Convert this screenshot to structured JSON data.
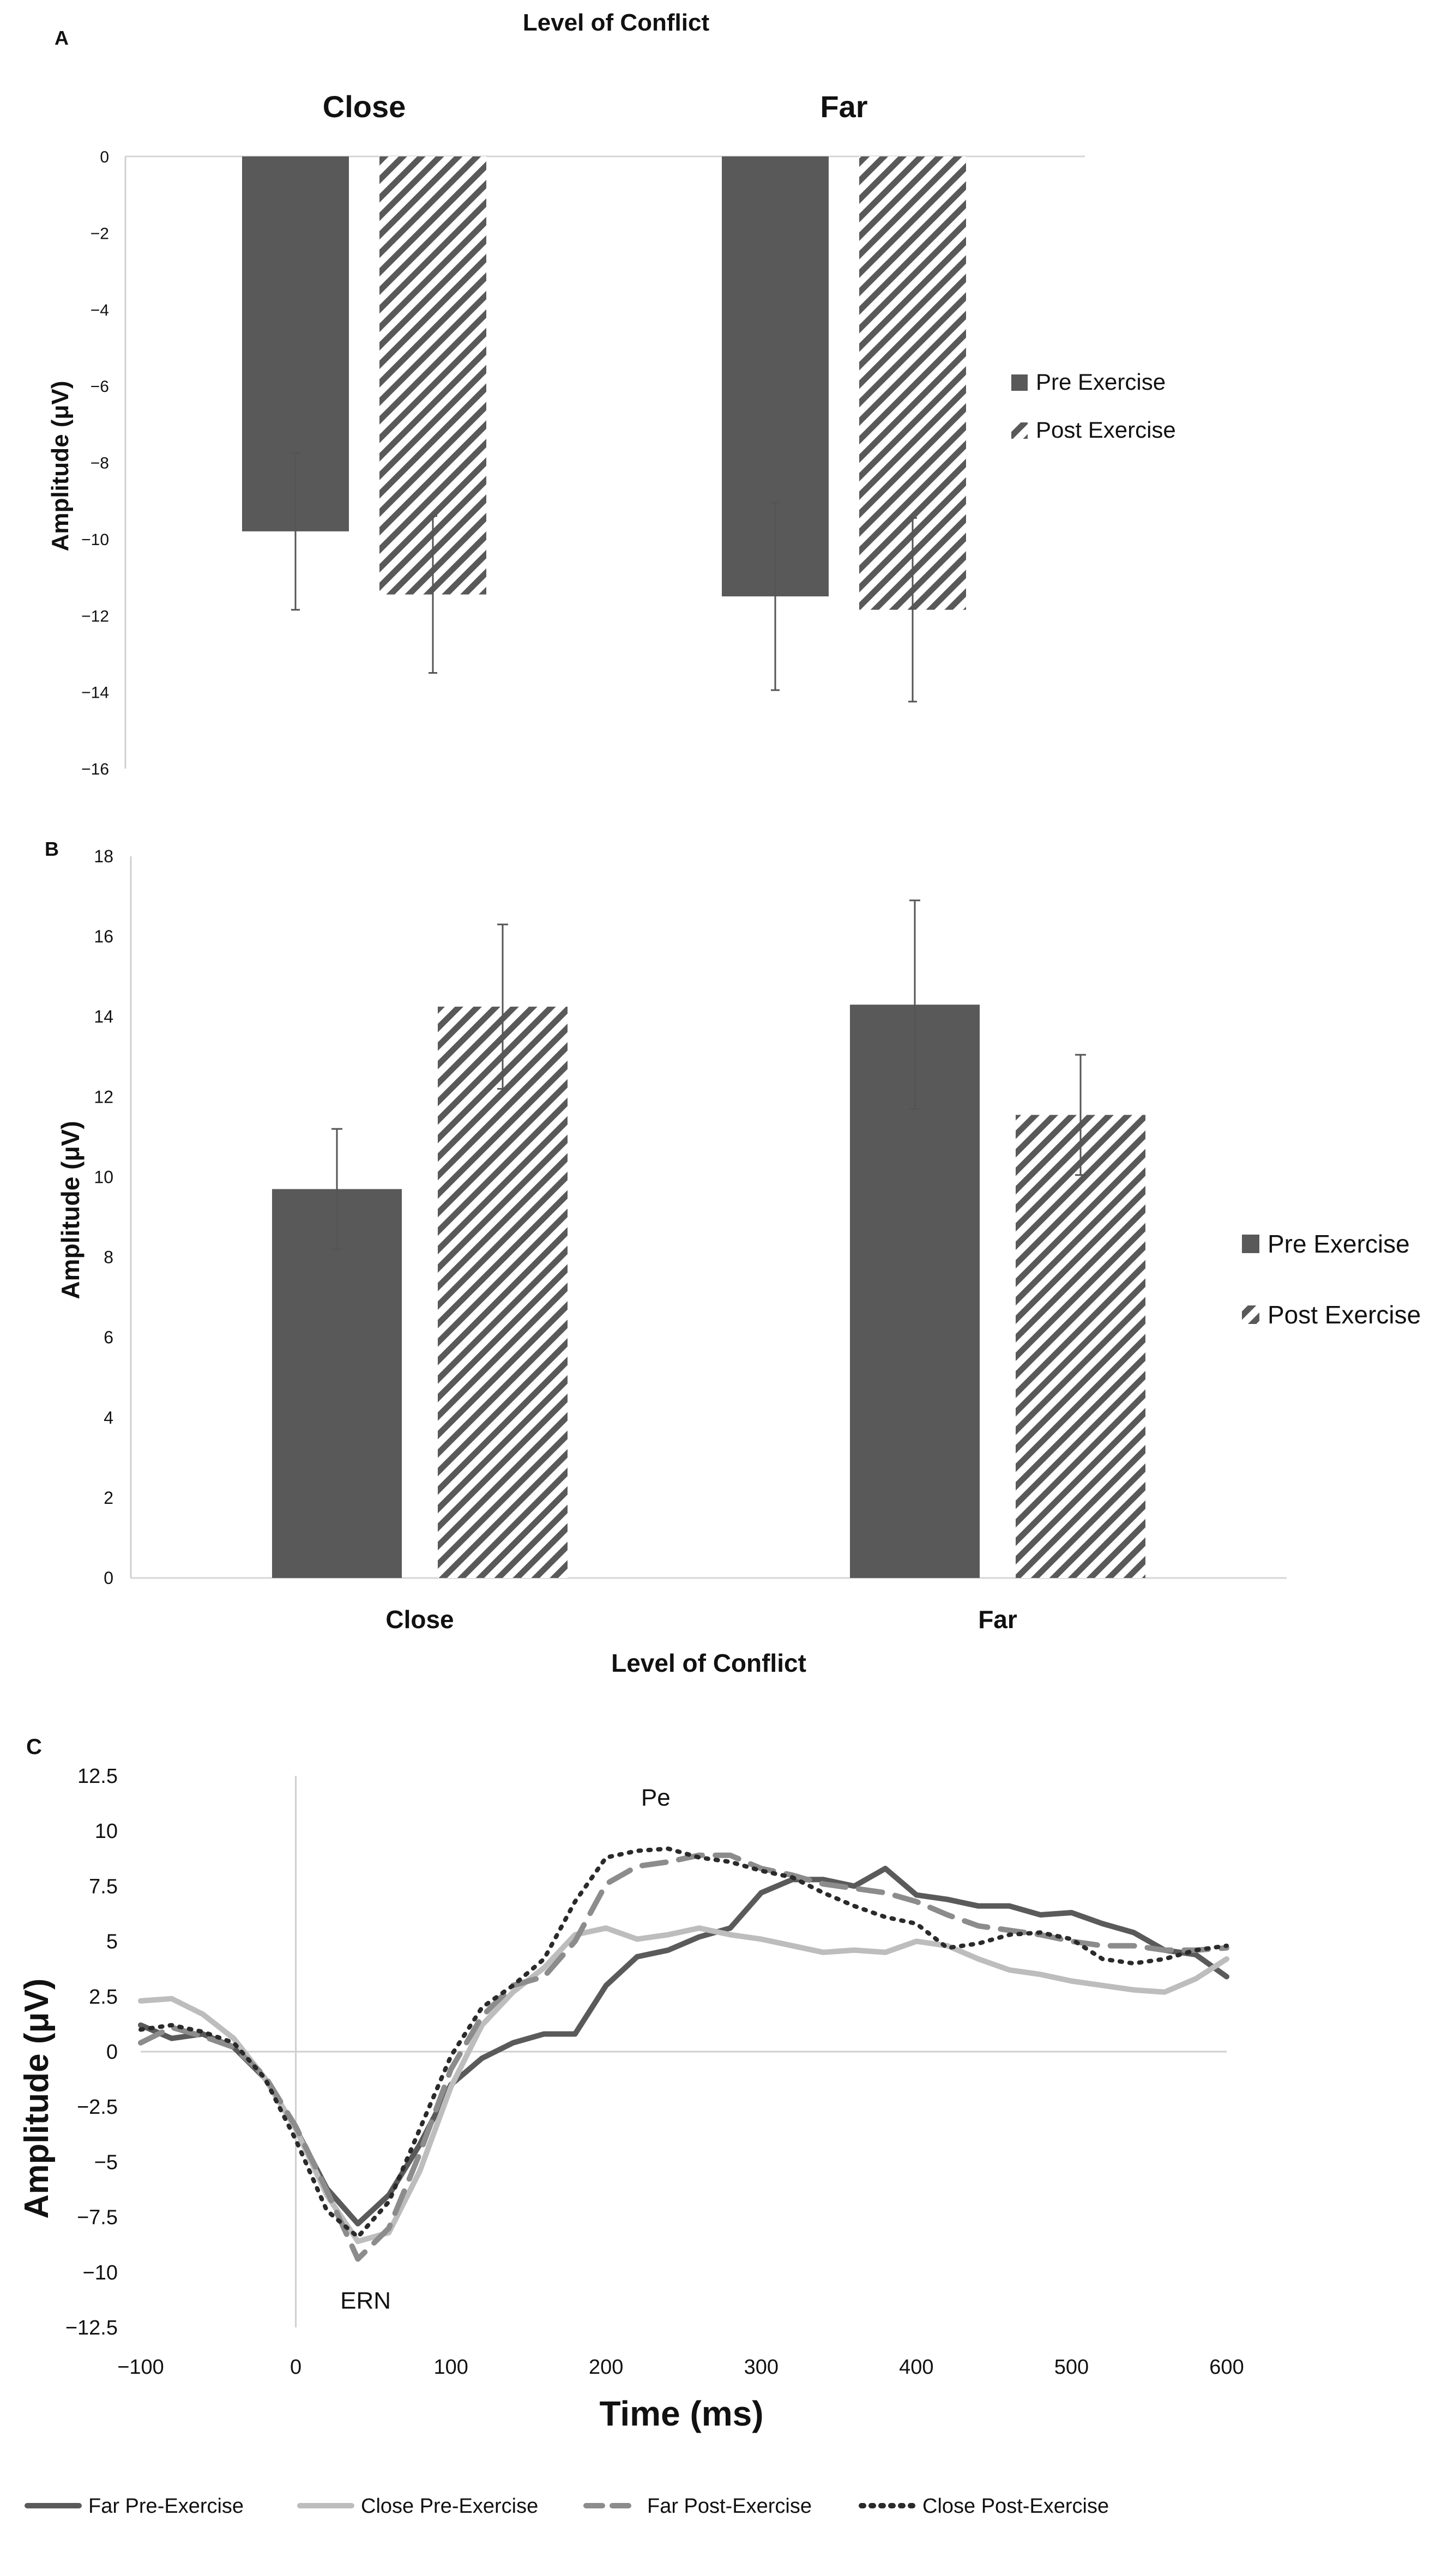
{
  "chart_data": [
    {
      "panel": "A",
      "type": "bar",
      "title": "Level of Conflict",
      "categories": [
        "Close",
        "Far"
      ],
      "ylabel": "Amplitude (μV)",
      "ylim": [
        -16,
        0
      ],
      "yticks": [
        "0",
        "-2",
        "-4",
        "-6",
        "-8",
        "-10",
        "-12",
        "-14",
        "-16"
      ],
      "grid": false,
      "legend_position": "right",
      "series": [
        {
          "name": "Pre Exercise",
          "values": [
            -9.8,
            -11.5
          ],
          "errors": [
            2.05,
            2.45
          ],
          "color": "#595959",
          "pattern": "solid"
        },
        {
          "name": "Post Exercise",
          "values": [
            -11.45,
            -11.85
          ],
          "errors": [
            2.05,
            2.4
          ],
          "color": "#595959",
          "pattern": "diagonal-hatch"
        }
      ]
    },
    {
      "panel": "B",
      "type": "bar",
      "xlabel": "Level of Conflict",
      "categories": [
        "Close",
        "Far"
      ],
      "ylabel": "Amplitude (μV)",
      "ylim": [
        0,
        18
      ],
      "yticks": [
        "0",
        "2",
        "4",
        "6",
        "8",
        "10",
        "12",
        "14",
        "16",
        "18"
      ],
      "grid": false,
      "legend_position": "right",
      "series": [
        {
          "name": "Pre Exercise",
          "values": [
            9.7,
            14.3
          ],
          "errors": [
            1.5,
            2.6
          ],
          "color": "#595959",
          "pattern": "solid"
        },
        {
          "name": "Post Exercise",
          "values": [
            14.25,
            11.55
          ],
          "errors": [
            2.05,
            1.5
          ],
          "color": "#595959",
          "pattern": "diagonal-hatch"
        }
      ]
    },
    {
      "panel": "C",
      "type": "line",
      "xlabel": "Time (ms)",
      "ylabel": "Amplitude (μV)",
      "xlim": [
        -100,
        600
      ],
      "ylim": [
        -12.5,
        12.5
      ],
      "xticks": [
        "-100",
        "0",
        "100",
        "200",
        "300",
        "400",
        "500",
        "600"
      ],
      "yticks": [
        "12.5",
        "10",
        "7.5",
        "5",
        "2.5",
        "0",
        "-2.5",
        "-5",
        "-7.5",
        "-10",
        "-12.5"
      ],
      "annotations": [
        {
          "text": "Pe",
          "x": 232,
          "y": 11.5
        },
        {
          "text": "ERN",
          "x": 45,
          "y": -11.3
        }
      ],
      "legend_position": "bottom",
      "series": [
        {
          "name": "Far Pre-Exercise",
          "color": "#5a5a5a",
          "style": "solid",
          "x": [
            -100,
            -80,
            -60,
            -40,
            -20,
            0,
            20,
            40,
            60,
            80,
            100,
            120,
            140,
            160,
            180,
            200,
            220,
            240,
            260,
            280,
            300,
            320,
            340,
            360,
            380,
            400,
            420,
            440,
            460,
            480,
            500,
            520,
            540,
            560,
            580,
            600
          ],
          "y": [
            1.2,
            0.6,
            0.8,
            0.2,
            -1.2,
            -3.5,
            -6.2,
            -7.8,
            -6.5,
            -4.2,
            -1.5,
            -0.3,
            0.4,
            0.8,
            0.8,
            3.0,
            4.3,
            4.6,
            5.2,
            5.6,
            7.2,
            7.8,
            7.8,
            7.5,
            8.3,
            7.1,
            6.9,
            6.6,
            6.6,
            6.2,
            6.3,
            5.8,
            5.4,
            4.6,
            4.4,
            3.4
          ]
        },
        {
          "name": "Close Pre-Exercise",
          "color": "#bdbdbd",
          "style": "solid",
          "x": [
            -100,
            -80,
            -60,
            -40,
            -20,
            0,
            20,
            40,
            60,
            80,
            100,
            120,
            140,
            160,
            180,
            200,
            220,
            240,
            260,
            280,
            300,
            320,
            340,
            360,
            380,
            400,
            420,
            440,
            460,
            480,
            500,
            520,
            540,
            560,
            580,
            600
          ],
          "y": [
            2.3,
            2.4,
            1.7,
            0.6,
            -1.2,
            -3.5,
            -6.5,
            -8.6,
            -8.2,
            -5.4,
            -1.6,
            1.2,
            2.7,
            3.8,
            5.3,
            5.6,
            5.1,
            5.3,
            5.6,
            5.3,
            5.1,
            4.8,
            4.5,
            4.6,
            4.5,
            5.0,
            4.8,
            4.2,
            3.7,
            3.5,
            3.2,
            3.0,
            2.8,
            2.7,
            3.3,
            4.2
          ]
        },
        {
          "name": "Far Post-Exercise",
          "color": "#8c8c8c",
          "style": "dashed",
          "x": [
            -100,
            -80,
            -60,
            -40,
            -20,
            0,
            20,
            40,
            60,
            80,
            100,
            120,
            140,
            160,
            180,
            200,
            220,
            240,
            260,
            280,
            300,
            320,
            340,
            360,
            380,
            400,
            420,
            440,
            460,
            480,
            500,
            520,
            540,
            560,
            580,
            600
          ],
          "y": [
            0.4,
            1.1,
            0.7,
            0.2,
            -1.1,
            -3.4,
            -6.3,
            -9.4,
            -8.0,
            -4.6,
            -0.8,
            1.6,
            3.0,
            3.4,
            5.0,
            7.6,
            8.4,
            8.6,
            8.9,
            8.9,
            8.3,
            8.0,
            7.6,
            7.4,
            7.2,
            6.8,
            6.2,
            5.7,
            5.5,
            5.3,
            5.0,
            4.8,
            4.8,
            4.6,
            4.6,
            4.7
          ]
        },
        {
          "name": "Close Post-Exercise",
          "color": "#2a2a2a",
          "style": "dotted",
          "x": [
            -100,
            -80,
            -60,
            -40,
            -20,
            0,
            20,
            40,
            60,
            80,
            100,
            120,
            140,
            160,
            180,
            200,
            220,
            240,
            260,
            280,
            300,
            320,
            340,
            360,
            380,
            400,
            420,
            440,
            460,
            480,
            500,
            520,
            540,
            560,
            580,
            600
          ],
          "y": [
            1.0,
            1.2,
            0.9,
            0.4,
            -1.2,
            -4.0,
            -7.2,
            -8.4,
            -6.8,
            -3.5,
            -0.2,
            2.0,
            3.0,
            4.2,
            6.8,
            8.8,
            9.1,
            9.2,
            8.8,
            8.6,
            8.2,
            7.9,
            7.2,
            6.6,
            6.1,
            5.8,
            4.7,
            4.9,
            5.3,
            5.4,
            5.1,
            4.2,
            4.0,
            4.2,
            4.6,
            4.8
          ]
        }
      ]
    }
  ],
  "labels": {
    "panel_a": "A",
    "panel_b": "B",
    "panel_c": "C"
  }
}
